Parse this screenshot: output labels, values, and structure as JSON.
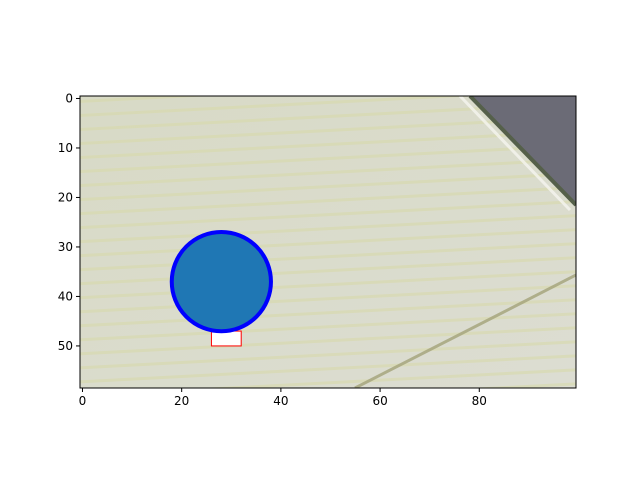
{
  "chart_data": {
    "type": "image",
    "title": "",
    "xlabel": "",
    "ylabel": "",
    "xlim": [
      -0.5,
      99.5
    ],
    "ylim": [
      58.5,
      -0.5
    ],
    "y_axis_inverted": true,
    "grid": false,
    "x_ticks": [
      0,
      20,
      40,
      60,
      80
    ],
    "y_ticks": [
      0,
      10,
      20,
      30,
      40,
      50
    ],
    "image_description": "pixelated grayscale/yellowish texture with a dark gray diagonal region in the upper right and a faint diagonal line at the bottom",
    "overlays": [
      {
        "kind": "circle",
        "cx": 28,
        "cy": 37,
        "r": 10,
        "face_color": "#1f77b4",
        "edge_color": "#0000ff"
      },
      {
        "kind": "rectangle",
        "x": 26,
        "y": 47,
        "width": 6,
        "height": 3,
        "edge_color": "#ff0000",
        "face_color": "#ffffff"
      }
    ]
  }
}
